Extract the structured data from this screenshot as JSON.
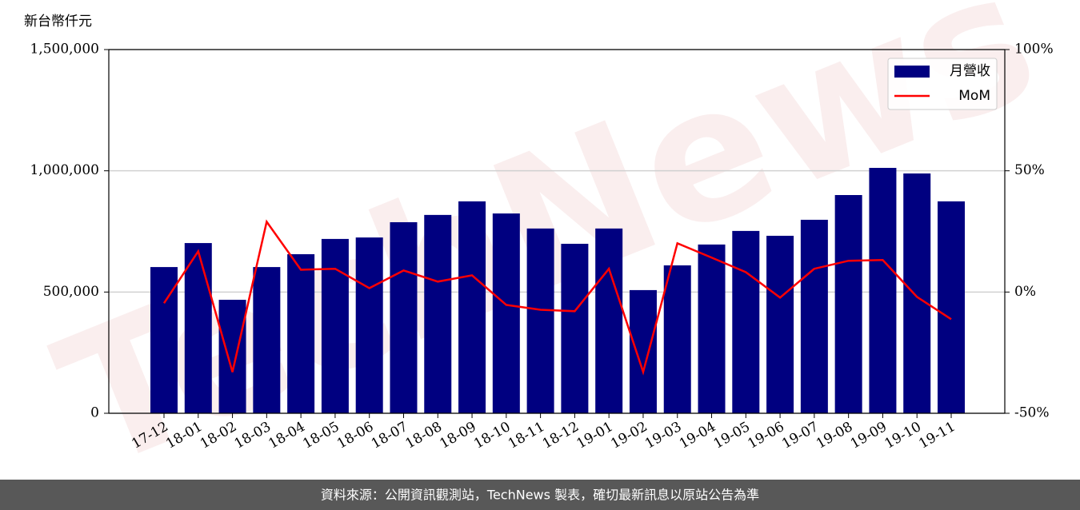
{
  "chart_data": {
    "type": "bar",
    "y_label": "新台幣仟元",
    "watermark": "TechNews",
    "footer": "資料來源：公開資訊觀測站，TechNews 製表，確切最新訊息以原站公告為準",
    "categories": [
      "17-12",
      "18-01",
      "18-02",
      "18-03",
      "18-04",
      "18-05",
      "18-06",
      "18-07",
      "18-08",
      "18-09",
      "18-10",
      "18-11",
      "18-12",
      "19-01",
      "19-02",
      "19-03",
      "19-04",
      "19-05",
      "19-06",
      "19-07",
      "19-08",
      "19-09",
      "19-10",
      "19-11"
    ],
    "series": [
      {
        "name": "月營收",
        "type": "bar",
        "color": "#000080",
        "axis": "y",
        "values": [
          603000,
          702000,
          468000,
          603000,
          656000,
          719000,
          725000,
          788000,
          818000,
          874000,
          824000,
          762000,
          699000,
          762000,
          508000,
          610000,
          696000,
          752000,
          732000,
          798000,
          900000,
          1012000,
          989000,
          874000
        ]
      },
      {
        "name": "MoM",
        "type": "line",
        "color": "#ff0000",
        "axis": "y2",
        "values": [
          -4.6,
          16.8,
          -33,
          29,
          9.2,
          9.6,
          1.6,
          8.9,
          4.3,
          6.9,
          -5.3,
          -7.3,
          -7.9,
          9.6,
          -33,
          20.1,
          14.2,
          8.2,
          -2.3,
          9.6,
          12.9,
          13.2,
          -2.0,
          -11.2
        ]
      }
    ],
    "ylim": [
      0,
      1500000
    ],
    "yticks": [
      {
        "value": 0,
        "label": "0"
      },
      {
        "value": 500000,
        "label": "500,000"
      },
      {
        "value": 1000000,
        "label": "1,000,000"
      },
      {
        "value": 1500000,
        "label": "1,500,000"
      }
    ],
    "y2lim": [
      -50,
      100
    ],
    "y2ticks": [
      {
        "value": -50,
        "label": "-50%"
      },
      {
        "value": 0,
        "label": "0%"
      },
      {
        "value": 50,
        "label": "50%"
      },
      {
        "value": 100,
        "label": "100%"
      }
    ],
    "grid": true,
    "legend": "upper right"
  }
}
